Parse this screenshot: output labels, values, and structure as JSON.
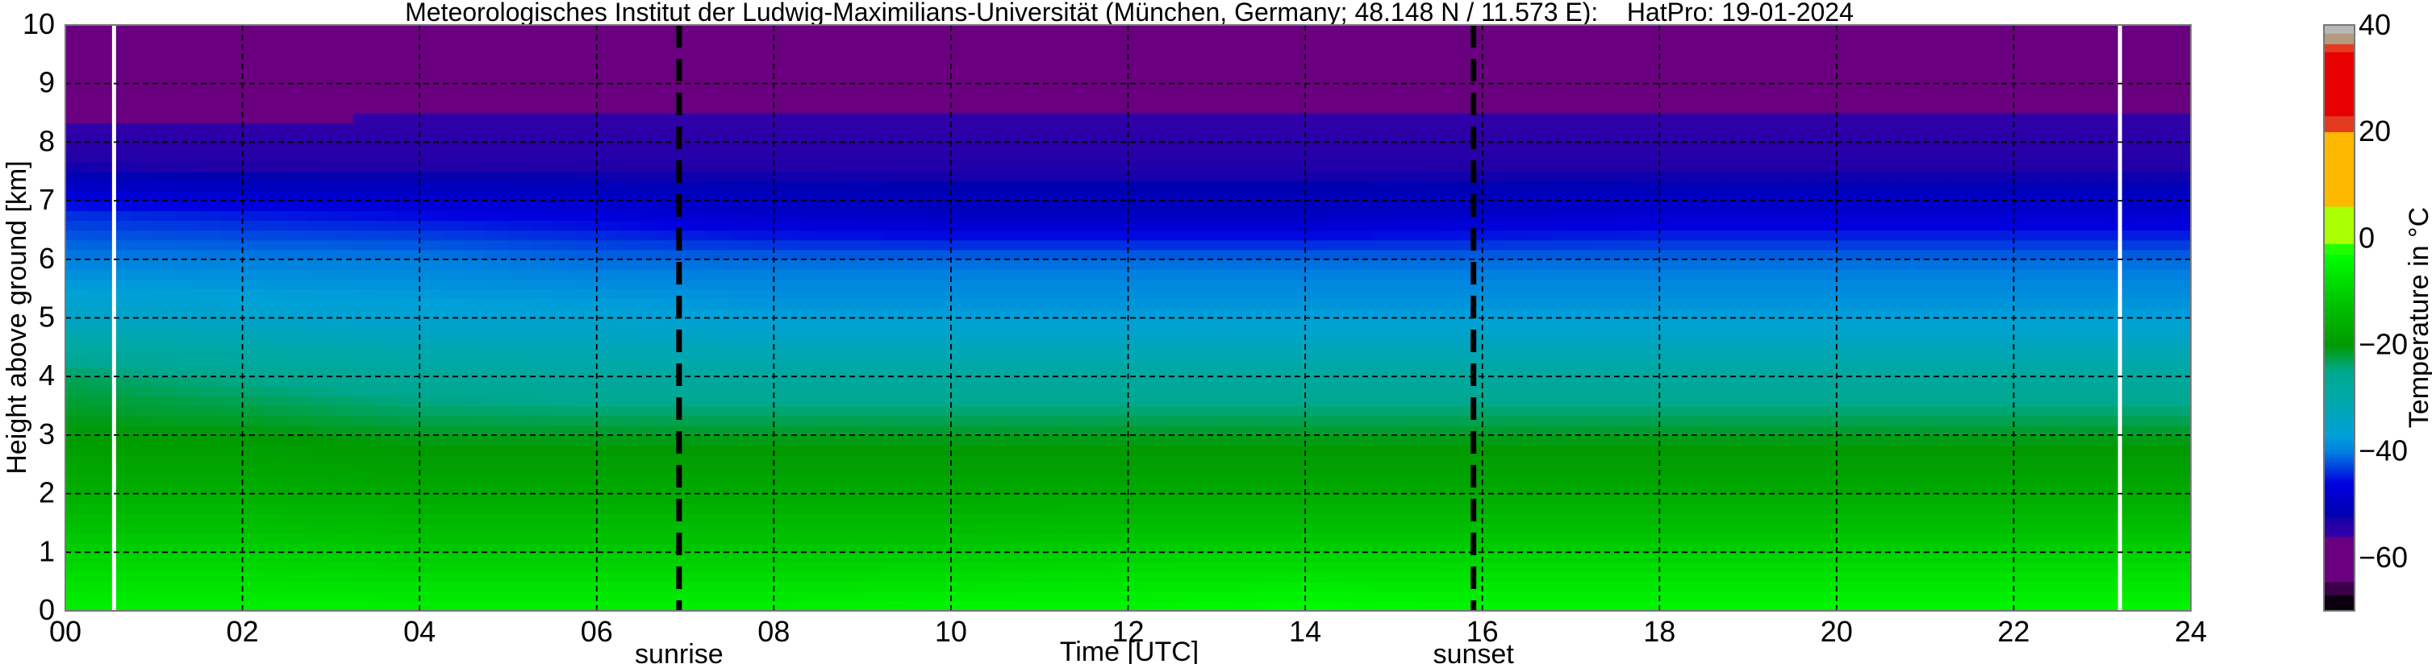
{
  "chart_data": {
    "type": "heatmap",
    "title": "Meteorologisches Institut der Ludwig-Maximilians-Universität (München, Germany; 48.148 N / 11.573 E):    HatPro: 19-01-2024",
    "xlabel": "Time [UTC]",
    "ylabel": "Height above ground [km]",
    "xlim": [
      0,
      24
    ],
    "ylim": [
      0,
      10
    ],
    "x_ticks": [
      "00",
      "02",
      "04",
      "06",
      "08",
      "10",
      "12",
      "14",
      "16",
      "18",
      "20",
      "22",
      "24"
    ],
    "y_ticks": [
      "0",
      "1",
      "2",
      "3",
      "4",
      "5",
      "6",
      "7",
      "8",
      "9",
      "10"
    ],
    "grid": true,
    "times": [
      0,
      2,
      4,
      6,
      8,
      10,
      12,
      14,
      16,
      18,
      20,
      22,
      24
    ],
    "heights": [
      0,
      1,
      2,
      3,
      4,
      5,
      6,
      6.8,
      7.5,
      8,
      9,
      10
    ],
    "temperature": [
      [
        -5,
        -10,
        -16,
        -20,
        -23,
        -34,
        -40,
        -44,
        -52,
        -55,
        -59,
        -63
      ],
      [
        -5,
        -10,
        -16,
        -20,
        -25,
        -35,
        -40,
        -45,
        -53,
        -55,
        -58,
        -61
      ],
      [
        -5,
        -11,
        -17,
        -21,
        -27,
        -36,
        -40,
        -46,
        -53,
        -55,
        -57,
        -59
      ],
      [
        -5,
        -11,
        -17,
        -21,
        -28,
        -36,
        -41,
        -47,
        -53,
        -55,
        -57,
        -58
      ],
      [
        -5,
        -11,
        -17,
        -21,
        -28,
        -37,
        -41,
        -49,
        -53,
        -55,
        -57,
        -58
      ],
      [
        -4,
        -11,
        -17,
        -21,
        -28,
        -37,
        -41,
        -50,
        -53,
        -55,
        -57,
        -58
      ],
      [
        -4,
        -10,
        -17,
        -21,
        -28,
        -37,
        -41,
        -50,
        -53,
        -55,
        -57,
        -58
      ],
      [
        -3,
        -10,
        -17,
        -21,
        -28,
        -37,
        -41,
        -50,
        -53,
        -55,
        -57,
        -58
      ],
      [
        -4,
        -10,
        -17,
        -21,
        -28,
        -37,
        -41,
        -49,
        -53,
        -55,
        -57,
        -58
      ],
      [
        -4,
        -10,
        -17,
        -21,
        -28,
        -37,
        -41,
        -48,
        -53,
        -55,
        -57,
        -58
      ],
      [
        -4,
        -10,
        -17,
        -21,
        -28,
        -37,
        -41,
        -48,
        -53,
        -55,
        -57,
        -58
      ],
      [
        -4,
        -10,
        -17,
        -21,
        -28,
        -37,
        -41,
        -48,
        -53,
        -55,
        -57,
        -58
      ],
      [
        -4,
        -10,
        -17,
        -21,
        -28,
        -37,
        -41,
        -48,
        -53,
        -55,
        -57,
        -58
      ]
    ],
    "markers": [
      {
        "label": "sunrise",
        "time": 6.93
      },
      {
        "label": "sunset",
        "time": 15.9
      }
    ],
    "gap_lines": [
      0.55,
      23.2
    ],
    "colorbar": {
      "label": "Temperature in $^\\circ$C",
      "label_text": "Temperature in °C",
      "range": [
        -70,
        40
      ],
      "ticks": [
        "40",
        "20",
        "0",
        "−20",
        "−40",
        "−60"
      ],
      "tick_values": [
        40,
        20,
        0,
        -20,
        -40,
        -60
      ],
      "colormap": [
        [
          -70,
          "#0a0010"
        ],
        [
          -67,
          "#0a0010"
        ],
        [
          -67,
          "#3a0048"
        ],
        [
          -64.5,
          "#3a0048"
        ],
        [
          -64.5,
          "#6a0080"
        ],
        [
          -56,
          "#6a0080"
        ],
        [
          -56,
          "#3000a8"
        ],
        [
          -53,
          "#2000a8"
        ],
        [
          -52,
          "#0000b0"
        ],
        [
          -46,
          "#0000e0"
        ],
        [
          -43,
          "#0040e0"
        ],
        [
          -40,
          "#0080e0"
        ],
        [
          -37,
          "#00a0d8"
        ],
        [
          -30,
          "#00a8a8"
        ],
        [
          -25,
          "#00a890"
        ],
        [
          -20,
          "#009a00"
        ],
        [
          -12,
          "#00c400"
        ],
        [
          -3,
          "#00ff00"
        ],
        [
          -3,
          "#22ff00"
        ],
        [
          -1,
          "#22ff00"
        ],
        [
          -1,
          "#aaff00"
        ],
        [
          6,
          "#aaff00"
        ],
        [
          6,
          "#ffb800"
        ],
        [
          20,
          "#ffb800"
        ],
        [
          20,
          "#e43a20"
        ],
        [
          23,
          "#e43a20"
        ],
        [
          23,
          "#e80000"
        ],
        [
          35,
          "#e80000"
        ],
        [
          35,
          "#e43a20"
        ],
        [
          36.6,
          "#e43a20"
        ],
        [
          36.6,
          "#b39b80"
        ],
        [
          38.6,
          "#b39b80"
        ],
        [
          38.6,
          "#b8b8b8"
        ],
        [
          40,
          "#b8b8b8"
        ]
      ]
    }
  }
}
